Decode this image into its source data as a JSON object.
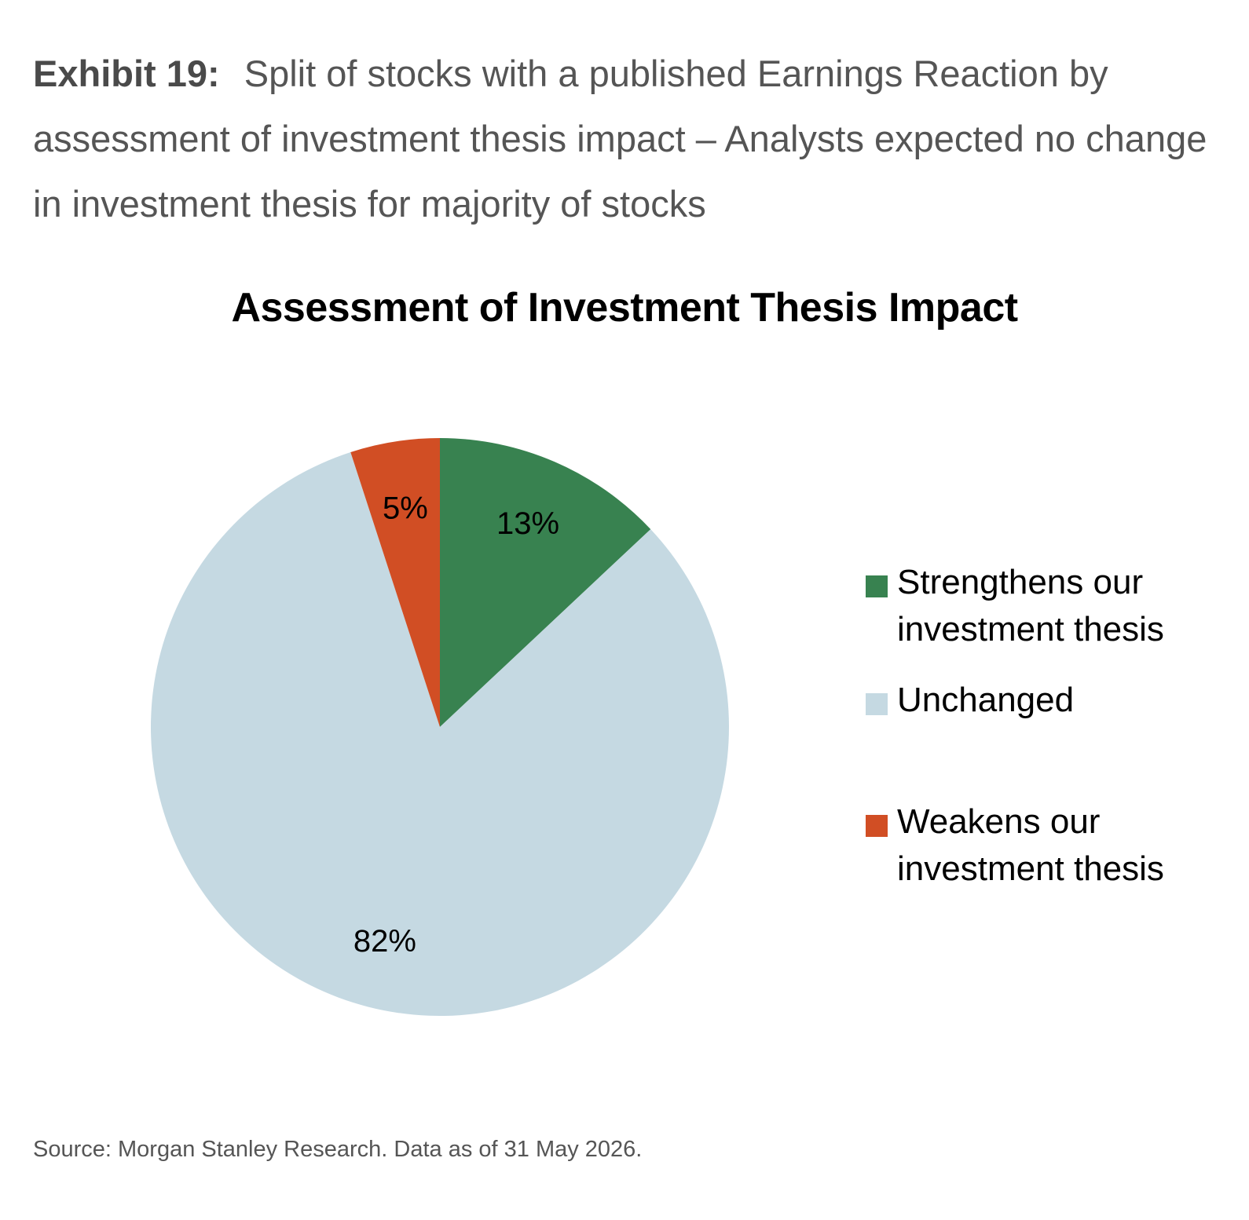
{
  "exhibit": {
    "label": "Exhibit 19:",
    "text": "Split of stocks with a published Earnings Reaction by assessment of investment thesis impact – Analysts expected no change in investment thesis for majority of stocks"
  },
  "chart_data": {
    "type": "pie",
    "title": "Assessment of Investment Thesis Impact",
    "slices": [
      {
        "label": "Strengthens our investment thesis",
        "value": 13,
        "display": "13%",
        "color": "#388250"
      },
      {
        "label": "Unchanged",
        "value": 82,
        "display": "82%",
        "color": "#c5d9e2"
      },
      {
        "label": "Weakens our investment thesis",
        "value": 5,
        "display": "5%",
        "color": "#d14e24"
      }
    ],
    "legend_position": "right"
  },
  "source": "Source: Morgan Stanley Research. Data as of 31 May 2026."
}
